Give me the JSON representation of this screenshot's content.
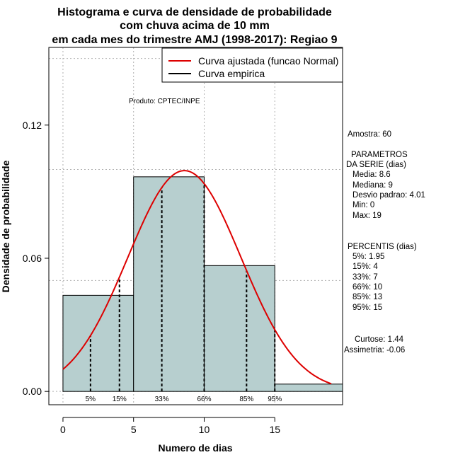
{
  "chart_data": {
    "type": "bar",
    "title_lines": [
      "Histograma e curva de densidade de probabilidade",
      "com chuva acima de 10 mm",
      "em cada mes do trimestre AMJ (1998-2017): Regiao 9"
    ],
    "xlabel": "Numero de dias",
    "ylabel": "Densidade de probabilidade",
    "xlim": [
      -1,
      19.8
    ],
    "ylim": [
      -0.006,
      0.155
    ],
    "x_ticks": [
      0,
      5,
      10,
      15
    ],
    "y_ticks": [
      0.0,
      0.06,
      0.12
    ],
    "y_tick_labels": [
      "0.00",
      "0.06",
      "0.12"
    ],
    "grid": true,
    "bins": [
      {
        "start": 0,
        "end": 5,
        "density": 0.0433
      },
      {
        "start": 5,
        "end": 10,
        "density": 0.0967
      },
      {
        "start": 10,
        "end": 15,
        "density": 0.0567
      },
      {
        "start": 15,
        "end": 20,
        "density": 0.0033
      }
    ],
    "bar_color": "#b7cfcf",
    "normal_curve": {
      "mean": 8.6,
      "sd": 4.01,
      "x_from": 0,
      "x_to": 19,
      "color": "#dd0000"
    },
    "percentiles": [
      {
        "label": "5%",
        "value": 1.95
      },
      {
        "label": "15%",
        "value": 4
      },
      {
        "label": "33%",
        "value": 7
      },
      {
        "label": "66%",
        "value": 10
      },
      {
        "label": "85%",
        "value": 13
      },
      {
        "label": "95%",
        "value": 15
      }
    ],
    "legend": {
      "position": "top-right",
      "entries": [
        {
          "label": "Curva ajustada (funcao Normal)",
          "color": "#dd0000"
        },
        {
          "label": "Curva empirica",
          "color": "#000000"
        }
      ]
    }
  },
  "product_note": "Produto: CPTEC/INPE",
  "stats_panel": {
    "amostra": "Amostra: 60",
    "parametros_title1": "PARAMETROS",
    "parametros_title2": "DA SERIE (dias)",
    "parametros": [
      "Media: 8.6",
      "Mediana: 9",
      "Desvio padrao: 4.01",
      "Min: 0",
      "Max: 19"
    ],
    "percentis_title": "PERCENTIS (dias)",
    "percentis": [
      "5%: 1.95",
      "15%: 4",
      "33%: 7",
      "66%: 10",
      "85%: 13",
      "95%: 15"
    ],
    "curtose": "Curtose: 1.44",
    "assimetria": "Assimetria: -0.06"
  }
}
